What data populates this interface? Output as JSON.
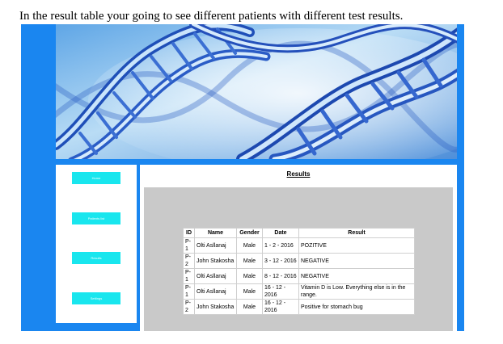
{
  "caption": "In the result table your going to see different patients with different test results.",
  "colors": {
    "frame_blue": "#1a86f0",
    "nav_button_cyan": "#19e6ee",
    "content_grey": "#c9c9c9"
  },
  "sidebar": {
    "items": [
      {
        "label": "Home",
        "icon": ""
      },
      {
        "label": "Patients list",
        "icon": ""
      },
      {
        "label": "Results",
        "icon": ""
      },
      {
        "label": "Settings",
        "icon": ""
      }
    ]
  },
  "results": {
    "title": "Results",
    "columns": [
      "ID",
      "Name",
      "Gender",
      "Date",
      "Result"
    ],
    "rows": [
      {
        "id": "P-1",
        "name": "Olti Asllanaj",
        "gender": "Male",
        "date": "1 - 2 - 2016",
        "result": "POZITIVE"
      },
      {
        "id": "P-2",
        "name": "John Stakosha",
        "gender": "Male",
        "date": "3 - 12 - 2016",
        "result": "NEGATIVE"
      },
      {
        "id": "P-1",
        "name": "Olti Asllanaj",
        "gender": "Male",
        "date": "8 - 12 - 2016",
        "result": "NEGATIVE"
      },
      {
        "id": "P-1",
        "name": "Olti Asllanaj",
        "gender": "Male",
        "date": "16 - 12 - 2016",
        "result": "Vitamin D is Low. Everything else is in the range."
      },
      {
        "id": "P-2",
        "name": "John Stakosha",
        "gender": "Male",
        "date": "16 - 12 - 2016",
        "result": "Positive for stomach bug"
      }
    ]
  }
}
